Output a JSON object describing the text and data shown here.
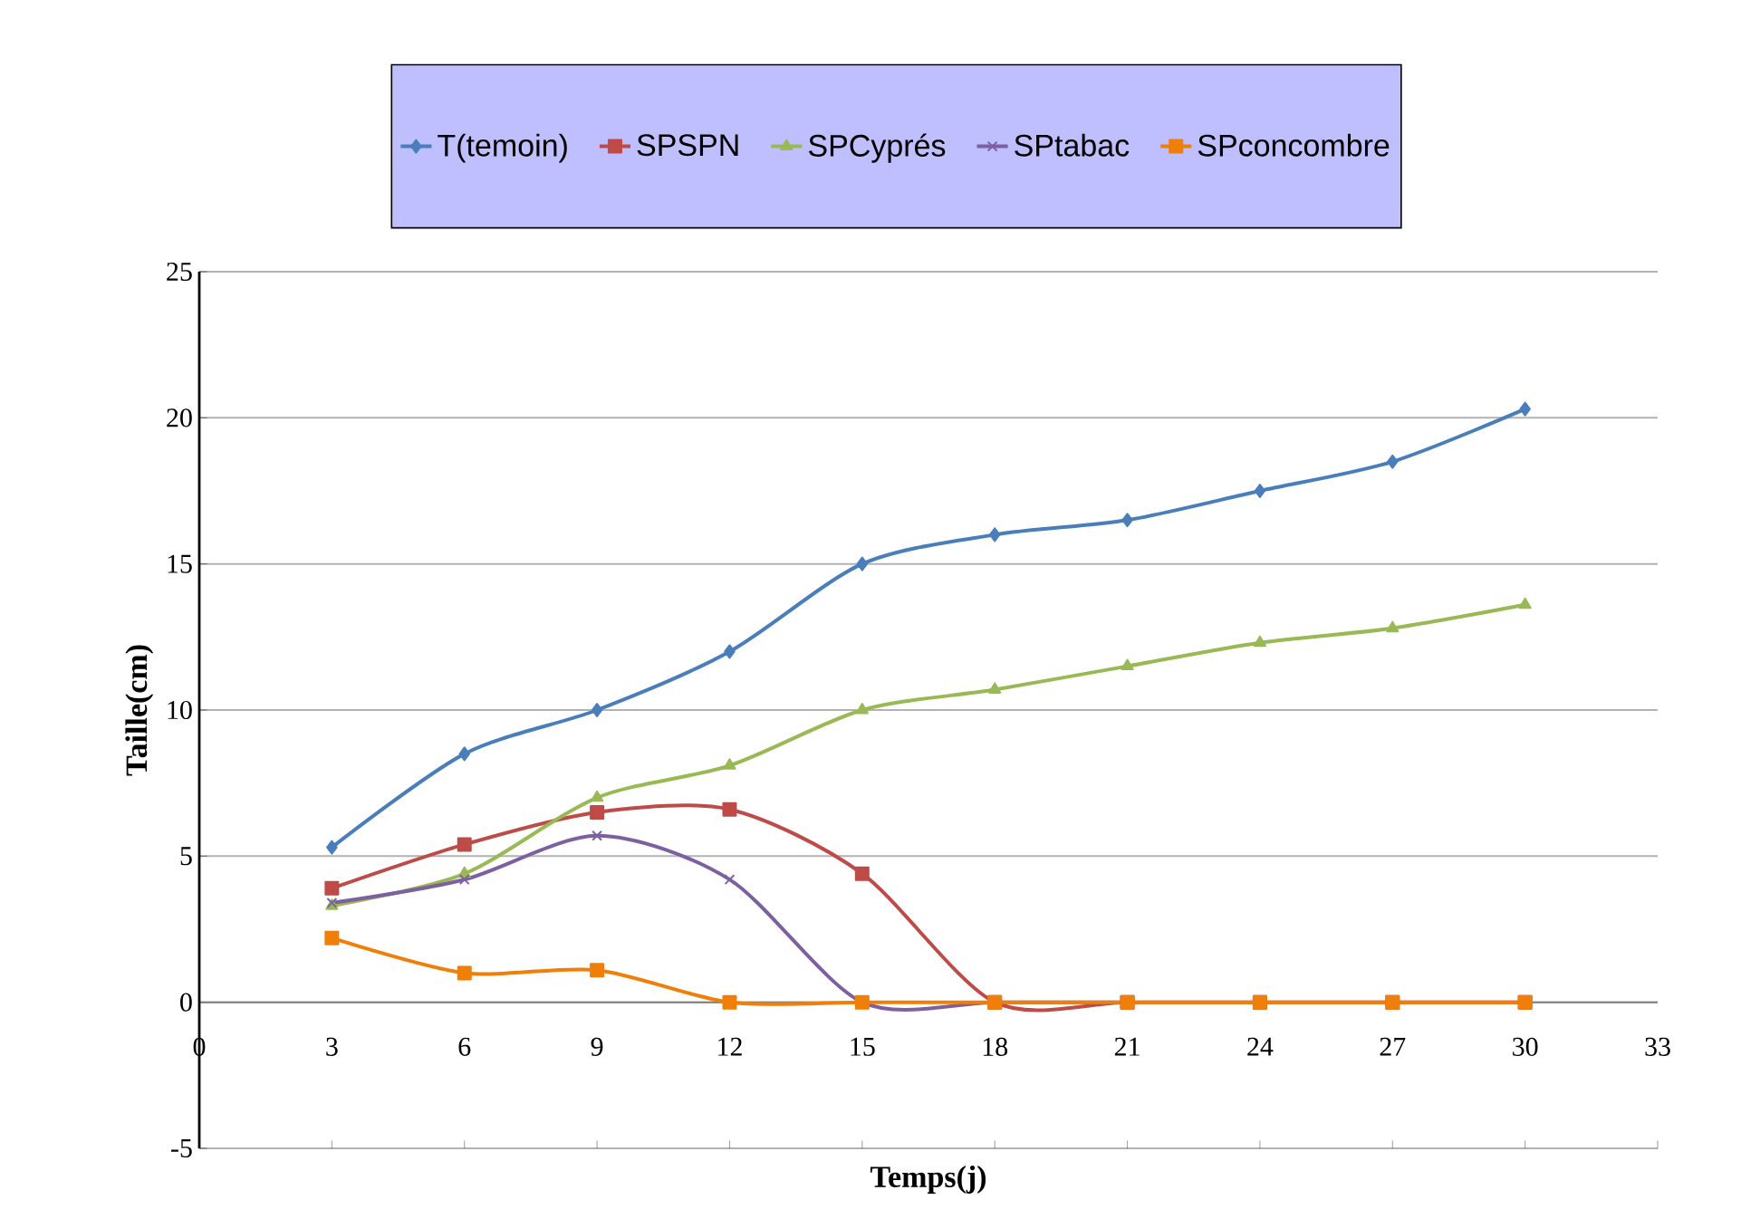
{
  "chart_data": {
    "type": "line",
    "xlabel": "Temps(j)",
    "ylabel": "Taille(cm)",
    "x": [
      3,
      6,
      9,
      12,
      15,
      18,
      21,
      24,
      27,
      30
    ],
    "xlim": [
      0,
      33
    ],
    "xticks": [
      0,
      3,
      6,
      9,
      12,
      15,
      18,
      21,
      24,
      27,
      30,
      33
    ],
    "ylim": [
      -5,
      25
    ],
    "yticks": [
      -5,
      0,
      5,
      10,
      15,
      20,
      25
    ],
    "grid": "y",
    "legend": "top",
    "line_style": "solid",
    "series": [
      {
        "name": "T(temoin)",
        "color": "#4a7ebb",
        "marker": "diamond",
        "values": [
          5.3,
          8.5,
          10,
          12,
          15,
          16,
          16.5,
          17.5,
          18.5,
          20.3
        ]
      },
      {
        "name": "SPSPN",
        "color": "#be4b48",
        "marker": "square",
        "values": [
          3.9,
          5.4,
          6.5,
          6.6,
          4.4,
          0,
          0,
          0,
          0,
          0
        ]
      },
      {
        "name": "SPCyprés",
        "color": "#98b954",
        "marker": "triangle",
        "values": [
          3.3,
          4.4,
          7,
          8.1,
          10,
          10.7,
          11.5,
          12.3,
          12.8,
          13.6
        ]
      },
      {
        "name": "SPtabac",
        "color": "#7d60a0",
        "marker": "cross",
        "values": [
          3.4,
          4.2,
          5.7,
          4.2,
          0,
          0,
          0,
          null,
          null,
          null
        ]
      },
      {
        "name": "SPconcombre",
        "color": "#f07f09",
        "marker": "square",
        "values": [
          2.2,
          1,
          1.1,
          0,
          0,
          0,
          0,
          0,
          0,
          0
        ]
      }
    ]
  }
}
